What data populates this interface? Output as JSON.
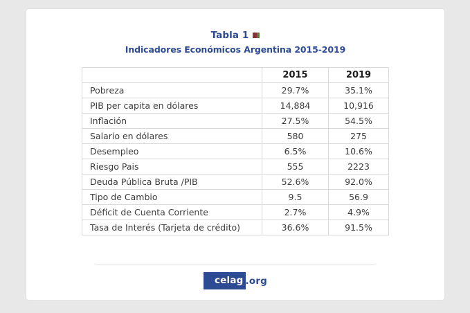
{
  "header": {
    "title": "Tabla 1",
    "subtitle": "Indicadores Económicos Argentina 2015-2019"
  },
  "footer": {
    "brand": "celag",
    "suffix": ".org"
  },
  "colors": {
    "accent_blue": "#2d4b92",
    "background": "#e8e8e9",
    "card": "#ffffff",
    "table_border": "#d9d9d9",
    "table_text": "#3c3c3c",
    "header_text": "#1d1d1d",
    "marker_red": "#8e3039",
    "marker_green": "#5e7a44"
  },
  "chart_data": {
    "type": "table",
    "title": "Tabla 1",
    "subtitle": "Indicadores Económicos Argentina 2015-2019",
    "columns": [
      "",
      "2015",
      "2019"
    ],
    "rows": [
      {
        "label": "Pobreza",
        "v2015": "29.7%",
        "v2019": "35.1%"
      },
      {
        "label": "PIB per capita en dólares",
        "v2015": "14,884",
        "v2019": "10,916"
      },
      {
        "label": "Inflación",
        "v2015": "27.5%",
        "v2019": "54.5%"
      },
      {
        "label": "Salario en dólares",
        "v2015": "580",
        "v2019": "275"
      },
      {
        "label": "Desempleo",
        "v2015": "6.5%",
        "v2019": "10.6%"
      },
      {
        "label": "Riesgo Pais",
        "v2015": "555",
        "v2019": "2223"
      },
      {
        "label": "Deuda Pública Bruta /PIB",
        "v2015": "52.6%",
        "v2019": "92.0%"
      },
      {
        "label": "Tipo de Cambio",
        "v2015": "9.5",
        "v2019": "56.9"
      },
      {
        "label": "Déficit de Cuenta Corriente",
        "v2015": "2.7%",
        "v2019": "4.9%"
      },
      {
        "label": "Tasa de Interés (Tarjeta de crédito)",
        "v2015": "36.6%",
        "v2019": "91.5%"
      }
    ],
    "source": "celag.org"
  }
}
